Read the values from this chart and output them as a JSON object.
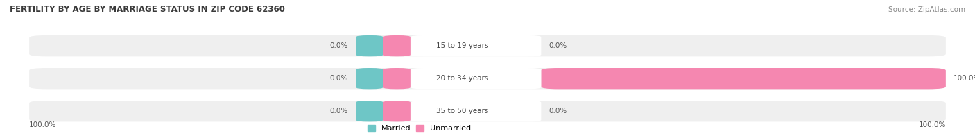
{
  "title": "FERTILITY BY AGE BY MARRIAGE STATUS IN ZIP CODE 62360",
  "source": "Source: ZipAtlas.com",
  "age_groups": [
    "15 to 19 years",
    "20 to 34 years",
    "35 to 50 years"
  ],
  "married_pct": [
    0.0,
    0.0,
    0.0
  ],
  "unmarried_pct": [
    0.0,
    100.0,
    0.0
  ],
  "married_color": "#6ec6c6",
  "unmarried_color": "#f587b0",
  "bar_bg_color": "#efefef",
  "label_white_bg": "#ffffff",
  "title_color": "#3a3a3a",
  "source_color": "#888888",
  "value_color": "#555555",
  "bottom_left_label": "100.0%",
  "bottom_right_label": "100.0%",
  "figsize": [
    14.06,
    1.96
  ],
  "dpi": 100
}
